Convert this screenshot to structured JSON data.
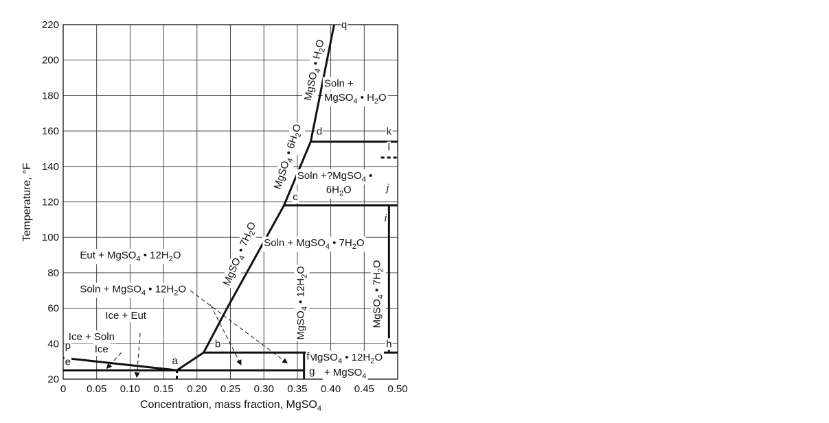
{
  "chart_data": {
    "type": "line",
    "title": "",
    "xlabel": "Concentration, mass fraction, MgSO",
    "xlabel_sub": "4",
    "ylabel": "Temperature, °F",
    "xlim": [
      0,
      0.5
    ],
    "ylim": [
      20,
      220
    ],
    "x_ticks": [
      "0",
      "0.05",
      "0.10",
      "0.15",
      "0.20",
      "0.25",
      "0.30",
      "0.35",
      "0.40",
      "0.45",
      "0.50"
    ],
    "y_ticks": [
      "20",
      "40",
      "60",
      "80",
      "100",
      "120",
      "140",
      "160",
      "180",
      "200",
      "220"
    ],
    "grid": true,
    "series": [
      {
        "points": [
          [
            0,
            32
          ],
          [
            0.17,
            25
          ]
        ]
      },
      {
        "points": [
          [
            0.17,
            25
          ],
          [
            0.21,
            35
          ],
          [
            0.245,
            60
          ],
          [
            0.33,
            118
          ],
          [
            0.37,
            154
          ],
          [
            0.405,
            220
          ]
        ]
      },
      {
        "points": [
          [
            0,
            25
          ],
          [
            0.36,
            25
          ]
        ]
      },
      {
        "points": [
          [
            0.21,
            35
          ],
          [
            0.5,
            35
          ]
        ]
      },
      {
        "points": [
          [
            0.36,
            20
          ],
          [
            0.36,
            35
          ]
        ]
      },
      {
        "points": [
          [
            0.33,
            118
          ],
          [
            0.5,
            118
          ]
        ]
      },
      {
        "points": [
          [
            0.487,
            35
          ],
          [
            0.487,
            118
          ]
        ]
      },
      {
        "points": [
          [
            0.37,
            154
          ],
          [
            0.5,
            154
          ]
        ]
      }
    ],
    "dashed_series": [
      {
        "points": [
          [
            0.475,
            145
          ],
          [
            0.5,
            145
          ]
        ]
      },
      {
        "points": [
          [
            0.17,
            20
          ],
          [
            0.17,
            25
          ]
        ]
      }
    ],
    "arrows": [
      {
        "from": [
          0.19,
          70
        ],
        "to": [
          0.335,
          29
        ]
      },
      {
        "from": [
          0.22,
          62
        ],
        "to": [
          0.266,
          28
        ]
      },
      {
        "from": [
          0.115,
          46
        ],
        "to": [
          0.11,
          21
        ]
      },
      {
        "from": [
          0.087,
          35
        ],
        "to": [
          0.065,
          26
        ]
      }
    ],
    "point_labels": [
      {
        "text": "q",
        "x": 0.42,
        "y": 218
      },
      {
        "text": "p",
        "x": 0.007,
        "y": 37
      },
      {
        "text": "e",
        "x": 0.007,
        "y": 28
      },
      {
        "text": "a",
        "x": 0.167,
        "y": 28.5
      },
      {
        "text": "b",
        "x": 0.231,
        "y": 38
      },
      {
        "text": "c",
        "x": 0.347,
        "y": 121
      },
      {
        "text": "d",
        "x": 0.383,
        "y": 158
      },
      {
        "text": "k",
        "x": 0.487,
        "y": 158
      },
      {
        "text": "l",
        "x": 0.487,
        "y": 149
      },
      {
        "text": "j",
        "x": 0.485,
        "y": 126
      },
      {
        "text": "i",
        "x": 0.482,
        "y": 109
      },
      {
        "text": "h",
        "x": 0.487,
        "y": 38
      },
      {
        "text": "g",
        "x": 0.372,
        "y": 22.5
      },
      {
        "text": "f",
        "x": 0.366,
        "y": 31
      }
    ],
    "region_labels": [
      {
        "parts": [
          {
            "t": "Soln +"
          }
        ],
        "x": 0.39,
        "y": 185
      },
      {
        "parts": [
          {
            "t": "MgSO"
          },
          {
            "t": "4",
            "sub": true
          },
          {
            "t": " • H"
          },
          {
            "t": "2",
            "sub": true
          },
          {
            "t": "O"
          }
        ],
        "x": 0.39,
        "y": 177
      },
      {
        "parts": [
          {
            "t": "Soln +?MgSO"
          },
          {
            "t": "4",
            "sub": true
          },
          {
            "t": " •"
          }
        ],
        "x": 0.35,
        "y": 133
      },
      {
        "parts": [
          {
            "t": "6H"
          },
          {
            "t": "2",
            "sub": true
          },
          {
            "t": "O"
          }
        ],
        "x": 0.393,
        "y": 125
      },
      {
        "parts": [
          {
            "t": "Soln + MgSO"
          },
          {
            "t": "4",
            "sub": true
          },
          {
            "t": " • 7H"
          },
          {
            "t": "2",
            "sub": true
          },
          {
            "t": "O"
          }
        ],
        "x": 0.3,
        "y": 95
      },
      {
        "parts": [
          {
            "t": "Eut + MgSO"
          },
          {
            "t": "4",
            "sub": true
          },
          {
            "t": " • 12H"
          },
          {
            "t": "2",
            "sub": true
          },
          {
            "t": "O"
          }
        ],
        "x": 0.025,
        "y": 88
      },
      {
        "parts": [
          {
            "t": "Soln + MgSO"
          },
          {
            "t": "4",
            "sub": true
          },
          {
            "t": " • 12H"
          },
          {
            "t": "2",
            "sub": true
          },
          {
            "t": "O"
          }
        ],
        "x": 0.025,
        "y": 69
      },
      {
        "parts": [
          {
            "t": "Ice + Eut"
          }
        ],
        "x": 0.063,
        "y": 54
      },
      {
        "parts": [
          {
            "t": "Ice + Soln"
          }
        ],
        "x": 0.008,
        "y": 42
      },
      {
        "parts": [
          {
            "t": "Ice"
          }
        ],
        "x": 0.047,
        "y": 35
      },
      {
        "parts": [
          {
            "t": "MgSO"
          },
          {
            "t": "4",
            "sub": true
          },
          {
            "t": " • 12H"
          },
          {
            "t": "2",
            "sub": true
          },
          {
            "t": "O"
          }
        ],
        "x": 0.367,
        "y": 30.5
      },
      {
        "parts": [
          {
            "t": "+ MgSO"
          },
          {
            "t": "4",
            "sub": true
          }
        ],
        "x": 0.39,
        "y": 22
      }
    ],
    "curve_labels": [
      {
        "parts": [
          {
            "t": "MgSO"
          },
          {
            "t": "4",
            "sub": true
          },
          {
            "t": " • H"
          },
          {
            "t": "2",
            "sub": true
          },
          {
            "t": "O"
          }
        ],
        "x": 0.38,
        "y": 194,
        "rot": -78
      },
      {
        "parts": [
          {
            "t": "MgSO"
          },
          {
            "t": "4",
            "sub": true
          },
          {
            "t": " • 6H"
          },
          {
            "t": "2",
            "sub": true
          },
          {
            "t": "O"
          }
        ],
        "x": 0.34,
        "y": 145,
        "rot": -72
      },
      {
        "parts": [
          {
            "t": "MgSO"
          },
          {
            "t": "4",
            "sub": true
          },
          {
            "t": " • 7H"
          },
          {
            "t": "2",
            "sub": true
          },
          {
            "t": "O"
          }
        ],
        "x": 0.268,
        "y": 90,
        "rot": -67
      },
      {
        "parts": [
          {
            "t": "MgSO"
          },
          {
            "t": "4",
            "sub": true
          },
          {
            "t": " • 12H"
          },
          {
            "t": "2",
            "sub": true
          },
          {
            "t": "O"
          }
        ],
        "x": 0.36,
        "y": 63,
        "rot": -90
      },
      {
        "parts": [
          {
            "t": "MgSO"
          },
          {
            "t": "4",
            "sub": true
          },
          {
            "t": " • 7H"
          },
          {
            "t": "2",
            "sub": true
          },
          {
            "t": "O"
          }
        ],
        "x": 0.474,
        "y": 68,
        "rot": -90
      }
    ]
  }
}
